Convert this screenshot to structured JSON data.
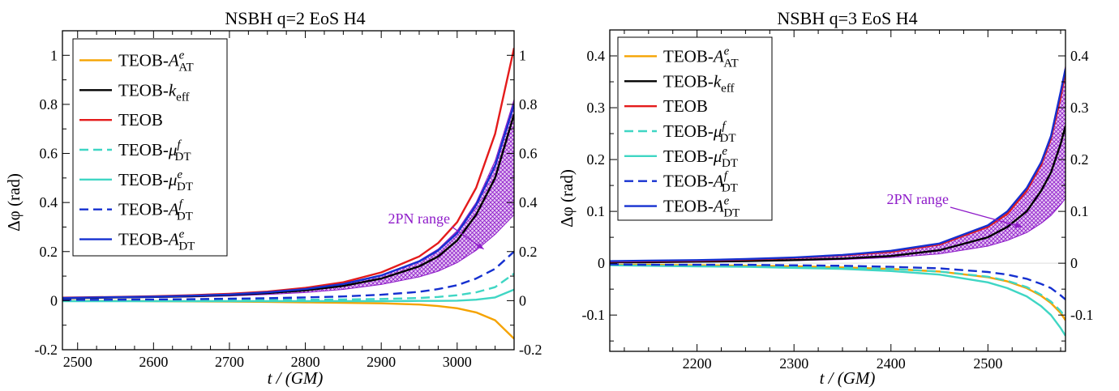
{
  "charts": [
    {
      "title": "NSBH q=2 EoS H4",
      "xlabel": "t / (GM)",
      "ylabel": "Δφ (rad)",
      "annotation": "2PN range",
      "x_ticks": [
        "2500",
        "2600",
        "2700",
        "2800",
        "2900",
        "3000"
      ],
      "y_ticks_left": [
        "-0.2",
        "0",
        "0.2",
        "0.4",
        "0.6",
        "0.8",
        "1"
      ],
      "y_ticks_right": [
        "-0.2",
        "0",
        "0.2",
        "0.4",
        "0.6",
        "0.8",
        "1"
      ],
      "legend": [
        {
          "base": "TEOB-",
          "sym": "A",
          "sup": "e",
          "sub": "AT",
          "color": "#f5a300",
          "dash": false
        },
        {
          "base": "TEOB-",
          "sym": "k",
          "sup": "",
          "sub": "eff",
          "color": "#000000",
          "dash": false
        },
        {
          "base": "TEOB",
          "sym": "",
          "sup": "",
          "sub": "",
          "color": "#e41b1b",
          "dash": false
        },
        {
          "base": "TEOB-",
          "sym": "μ",
          "sup": "f",
          "sub": "DT",
          "color": "#3fd6c4",
          "dash": true
        },
        {
          "base": "TEOB-",
          "sym": "μ",
          "sup": "e",
          "sub": "DT",
          "color": "#3fd6c4",
          "dash": false
        },
        {
          "base": "TEOB-",
          "sym": "A",
          "sup": "f",
          "sub": "DT",
          "color": "#1530d0",
          "dash": true
        },
        {
          "base": "TEOB-",
          "sym": "A",
          "sup": "e",
          "sub": "DT",
          "color": "#1530d0",
          "dash": false
        }
      ]
    },
    {
      "title": "NSBH q=3 EoS H4",
      "xlabel": "t / (GM)",
      "ylabel": "Δφ (rad)",
      "annotation": "2PN range",
      "x_ticks": [
        "2200",
        "2300",
        "2400",
        "2500"
      ],
      "y_ticks_left": [
        "-0.1",
        "0",
        "0.1",
        "0.2",
        "0.3",
        "0.4"
      ],
      "y_ticks_right": [
        "-0.1",
        "0",
        "0.1",
        "0.2",
        "0.3",
        "0.4"
      ],
      "legend": [
        {
          "base": "TEOB-",
          "sym": "A",
          "sup": "e",
          "sub": "AT",
          "color": "#f5a300",
          "dash": false
        },
        {
          "base": "TEOB-",
          "sym": "k",
          "sup": "",
          "sub": "eff",
          "color": "#000000",
          "dash": false
        },
        {
          "base": "TEOB",
          "sym": "",
          "sup": "",
          "sub": "",
          "color": "#e41b1b",
          "dash": false
        },
        {
          "base": "TEOB-",
          "sym": "μ",
          "sup": "f",
          "sub": "DT",
          "color": "#3fd6c4",
          "dash": true
        },
        {
          "base": "TEOB-",
          "sym": "μ",
          "sup": "e",
          "sub": "DT",
          "color": "#3fd6c4",
          "dash": false
        },
        {
          "base": "TEOB-",
          "sym": "A",
          "sup": "f",
          "sub": "DT",
          "color": "#1530d0",
          "dash": true
        },
        {
          "base": "TEOB-",
          "sym": "A",
          "sup": "e",
          "sub": "DT",
          "color": "#1530d0",
          "dash": false
        }
      ]
    }
  ],
  "chart_data": [
    {
      "type": "line",
      "title": "NSBH q=2 EoS H4",
      "xlabel": "t / (GM)",
      "ylabel": "Δφ (rad)",
      "xlim": [
        2480,
        3075
      ],
      "ylim": [
        -0.2,
        1.1
      ],
      "x": [
        2480,
        2550,
        2600,
        2650,
        2700,
        2750,
        2800,
        2850,
        2900,
        2950,
        2975,
        3000,
        3025,
        3050,
        3075
      ],
      "series": [
        {
          "name": "TEOB-A^e_AT",
          "color": "#f5a300",
          "dash": false,
          "values": [
            -0.001,
            -0.001,
            -0.002,
            -0.003,
            -0.004,
            -0.005,
            -0.007,
            -0.009,
            -0.011,
            -0.016,
            -0.022,
            -0.031,
            -0.048,
            -0.08,
            -0.155
          ]
        },
        {
          "name": "TEOB-k_eff",
          "color": "#000000",
          "dash": false,
          "values": [
            0.01,
            0.013,
            0.015,
            0.018,
            0.023,
            0.031,
            0.042,
            0.06,
            0.09,
            0.14,
            0.18,
            0.245,
            0.35,
            0.5,
            0.76
          ]
        },
        {
          "name": "TEOB",
          "color": "#e41b1b",
          "dash": false,
          "values": [
            0.012,
            0.015,
            0.018,
            0.022,
            0.028,
            0.037,
            0.052,
            0.075,
            0.115,
            0.18,
            0.235,
            0.32,
            0.46,
            0.68,
            1.03
          ]
        },
        {
          "name": "TEOB-μ^f_DT",
          "color": "#3fd6c4",
          "dash": true,
          "values": [
            0.001,
            0.001,
            0.001,
            0.002,
            0.002,
            0.003,
            0.004,
            0.005,
            0.007,
            0.011,
            0.015,
            0.022,
            0.034,
            0.055,
            0.11
          ]
        },
        {
          "name": "TEOB-μ^e_DT",
          "color": "#3fd6c4",
          "dash": false,
          "values": [
            -0.002,
            -0.002,
            -0.002,
            -0.002,
            -0.002,
            -0.002,
            -0.002,
            -0.002,
            -0.002,
            -0.001,
            -0.001,
            0.0,
            0.004,
            0.013,
            0.045
          ]
        },
        {
          "name": "TEOB-A^f_DT",
          "color": "#1530d0",
          "dash": true,
          "values": [
            0.003,
            0.004,
            0.005,
            0.006,
            0.008,
            0.01,
            0.013,
            0.017,
            0.024,
            0.036,
            0.047,
            0.063,
            0.09,
            0.13,
            0.2
          ]
        },
        {
          "name": "TEOB-A^e_DT",
          "color": "#1530d0",
          "dash": false,
          "values": [
            0.011,
            0.014,
            0.016,
            0.02,
            0.025,
            0.034,
            0.047,
            0.068,
            0.103,
            0.16,
            0.205,
            0.275,
            0.39,
            0.55,
            0.8
          ]
        }
      ],
      "band": {
        "name": "2PN range",
        "color": "#8e1bc9",
        "upper": [
          0.011,
          0.014,
          0.017,
          0.021,
          0.026,
          0.035,
          0.048,
          0.07,
          0.105,
          0.163,
          0.21,
          0.285,
          0.4,
          0.57,
          0.82
        ],
        "lower": [
          0.009,
          0.011,
          0.013,
          0.015,
          0.019,
          0.025,
          0.033,
          0.046,
          0.066,
          0.097,
          0.12,
          0.155,
          0.205,
          0.27,
          0.35
        ]
      },
      "annotation": {
        "text": "2PN range",
        "target": [
          3035,
          0.21
        ]
      }
    },
    {
      "type": "line",
      "title": "NSBH q=3 EoS H4",
      "xlabel": "t / (GM)",
      "ylabel": "Δφ (rad)",
      "xlim": [
        2110,
        2580
      ],
      "ylim": [
        -0.17,
        0.45
      ],
      "x": [
        2110,
        2150,
        2200,
        2250,
        2300,
        2350,
        2400,
        2450,
        2500,
        2520,
        2540,
        2555,
        2565,
        2575,
        2580
      ],
      "series": [
        {
          "name": "TEOB-A^e_AT",
          "color": "#f5a300",
          "dash": false,
          "values": [
            -0.003,
            -0.003,
            -0.004,
            -0.005,
            -0.006,
            -0.008,
            -0.011,
            -0.016,
            -0.027,
            -0.035,
            -0.048,
            -0.063,
            -0.077,
            -0.096,
            -0.11
          ]
        },
        {
          "name": "TEOB-k_eff",
          "color": "#000000",
          "dash": false,
          "values": [
            0.002,
            0.002,
            0.003,
            0.004,
            0.006,
            0.009,
            0.014,
            0.025,
            0.05,
            0.07,
            0.1,
            0.14,
            0.175,
            0.23,
            0.265
          ]
        },
        {
          "name": "TEOB",
          "color": "#e41b1b",
          "dash": false,
          "values": [
            0.003,
            0.004,
            0.005,
            0.007,
            0.01,
            0.015,
            0.022,
            0.036,
            0.07,
            0.095,
            0.14,
            0.19,
            0.24,
            0.32,
            0.37
          ]
        },
        {
          "name": "TEOB-μ^f_DT",
          "color": "#3fd6c4",
          "dash": true,
          "values": [
            -0.003,
            -0.003,
            -0.004,
            -0.005,
            -0.006,
            -0.008,
            -0.011,
            -0.016,
            -0.026,
            -0.034,
            -0.046,
            -0.061,
            -0.074,
            -0.092,
            -0.105
          ]
        },
        {
          "name": "TEOB-μ^e_DT",
          "color": "#3fd6c4",
          "dash": false,
          "values": [
            -0.004,
            -0.005,
            -0.006,
            -0.007,
            -0.009,
            -0.011,
            -0.015,
            -0.022,
            -0.037,
            -0.048,
            -0.064,
            -0.083,
            -0.1,
            -0.125,
            -0.14
          ]
        },
        {
          "name": "TEOB-A^f_DT",
          "color": "#1530d0",
          "dash": true,
          "values": [
            -0.002,
            -0.003,
            -0.003,
            -0.003,
            -0.004,
            -0.005,
            -0.007,
            -0.01,
            -0.017,
            -0.022,
            -0.03,
            -0.04,
            -0.048,
            -0.062,
            -0.07
          ]
        },
        {
          "name": "TEOB-A^e_DT",
          "color": "#1530d0",
          "dash": false,
          "values": [
            0.004,
            0.005,
            0.006,
            0.008,
            0.011,
            0.016,
            0.024,
            0.038,
            0.073,
            0.1,
            0.145,
            0.195,
            0.245,
            0.33,
            0.375
          ]
        }
      ],
      "band": {
        "name": "2PN range",
        "color": "#8e1bc9",
        "upper": [
          0.004,
          0.005,
          0.006,
          0.008,
          0.011,
          0.016,
          0.024,
          0.038,
          0.074,
          0.1,
          0.146,
          0.197,
          0.248,
          0.333,
          0.38
        ]
      },
      "band_lower": [
        0.002,
        0.002,
        0.003,
        0.004,
        0.005,
        0.007,
        0.011,
        0.018,
        0.033,
        0.044,
        0.059,
        0.077,
        0.092,
        0.113,
        0.125
      ],
      "annotation": {
        "text": "2PN range",
        "target": [
          2535,
          0.07
        ]
      }
    }
  ]
}
